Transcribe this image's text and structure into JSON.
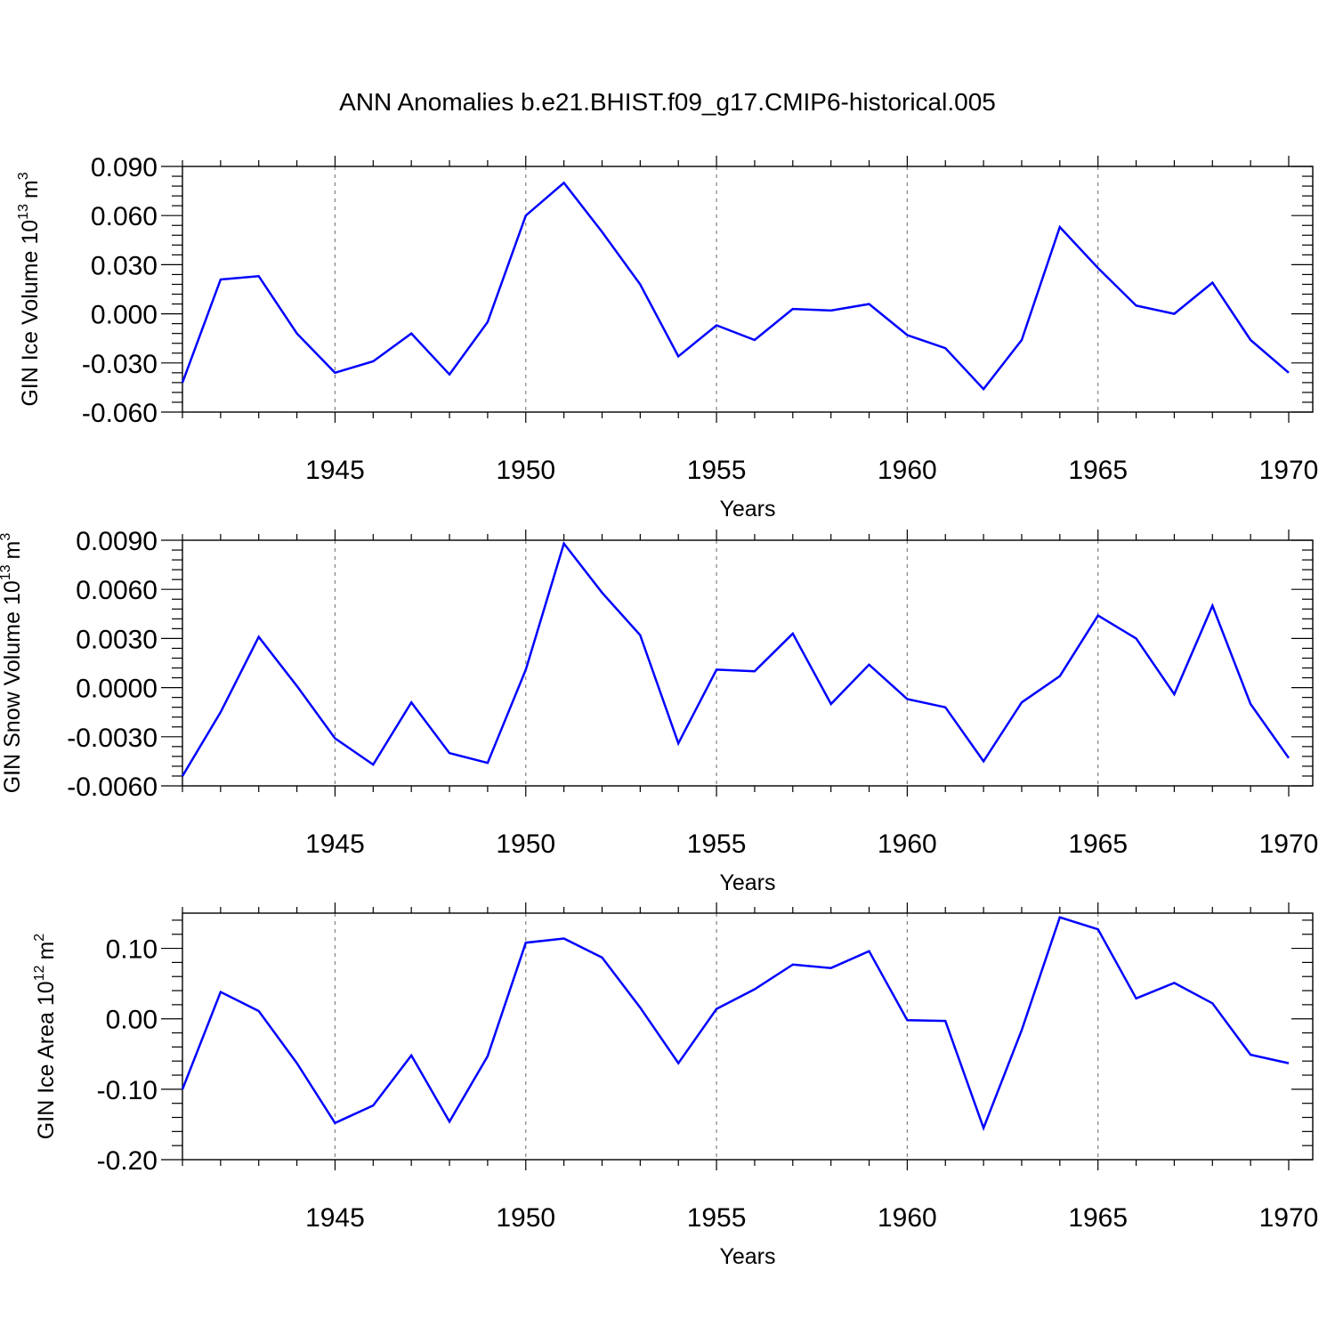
{
  "title": "ANN Anomalies b.e21.BHIST.f09_g17.CMIP6-historical.005",
  "colors": {
    "line": "#0000ff",
    "axis": "#000000",
    "grid": "#808080"
  },
  "chart_data": [
    {
      "type": "line",
      "name": "ice-volume",
      "ylabel_main": "GIN Ice Volume 10",
      "ylabel_exp": "13",
      "ylabel_unit": "m",
      "ylabel_unit_exp": "3",
      "xlabel": "Years",
      "xlim": [
        1941,
        1970
      ],
      "ylim": [
        -0.06,
        0.09
      ],
      "yticks": [
        -0.06,
        -0.03,
        0.0,
        0.03,
        0.06,
        0.09
      ],
      "yticklabels": [
        "-0.060",
        "-0.030",
        "0.000",
        "0.030",
        "0.060",
        "0.090"
      ],
      "xticks": [
        1945,
        1950,
        1955,
        1960,
        1965,
        1970
      ],
      "xticklabels": [
        "1945",
        "1950",
        "1955",
        "1960",
        "1965",
        "1970"
      ],
      "x": [
        1941,
        1942,
        1943,
        1944,
        1945,
        1946,
        1947,
        1948,
        1949,
        1950,
        1951,
        1952,
        1953,
        1954,
        1955,
        1956,
        1957,
        1958,
        1959,
        1960,
        1961,
        1962,
        1963,
        1964,
        1965,
        1966,
        1967,
        1968,
        1969,
        1970
      ],
      "values": [
        -0.042,
        0.021,
        0.023,
        -0.012,
        -0.036,
        -0.029,
        -0.012,
        -0.037,
        -0.005,
        0.06,
        0.08,
        0.05,
        0.018,
        -0.026,
        -0.007,
        -0.016,
        0.003,
        0.002,
        0.006,
        -0.013,
        -0.021,
        -0.046,
        -0.016,
        0.053,
        0.028,
        0.005,
        0.0,
        0.019,
        -0.016,
        -0.036
      ]
    },
    {
      "type": "line",
      "name": "snow-volume",
      "ylabel_main": "GIN Snow Volume 10",
      "ylabel_exp": "13",
      "ylabel_unit": "m",
      "ylabel_unit_exp": "3",
      "xlabel": "Years",
      "xlim": [
        1941,
        1970
      ],
      "ylim": [
        -0.006,
        0.009
      ],
      "yticks": [
        -0.006,
        -0.003,
        0.0,
        0.003,
        0.006,
        0.009
      ],
      "yticklabels": [
        "-0.0060",
        "-0.0030",
        "0.0000",
        "0.0030",
        "0.0060",
        "0.0090"
      ],
      "xticks": [
        1945,
        1950,
        1955,
        1960,
        1965,
        1970
      ],
      "xticklabels": [
        "1945",
        "1950",
        "1955",
        "1960",
        "1965",
        "1970"
      ],
      "x": [
        1941,
        1942,
        1943,
        1944,
        1945,
        1946,
        1947,
        1948,
        1949,
        1950,
        1951,
        1952,
        1953,
        1954,
        1955,
        1956,
        1957,
        1958,
        1959,
        1960,
        1961,
        1962,
        1963,
        1964,
        1965,
        1966,
        1967,
        1968,
        1969,
        1970
      ],
      "values": [
        -0.0054,
        -0.0015,
        0.0031,
        0.0001,
        -0.0031,
        -0.0047,
        -0.0009,
        -0.004,
        -0.0046,
        0.0011,
        0.0088,
        0.0058,
        0.0032,
        -0.0034,
        0.0011,
        0.001,
        0.0033,
        -0.001,
        0.0014,
        -0.0007,
        -0.0012,
        -0.0045,
        -0.0009,
        0.0007,
        0.0044,
        0.003,
        -0.0004,
        0.005,
        -0.001,
        -0.0043
      ]
    },
    {
      "type": "line",
      "name": "ice-area",
      "ylabel_main": "GIN Ice Area 10",
      "ylabel_exp": "12",
      "ylabel_unit": "m",
      "ylabel_unit_exp": "2",
      "xlabel": "Years",
      "xlim": [
        1941,
        1970
      ],
      "ylim": [
        -0.2,
        0.15
      ],
      "yticks": [
        -0.2,
        -0.1,
        0.0,
        0.1
      ],
      "yticklabels": [
        "-0.20",
        "-0.10",
        "0.00",
        "0.10"
      ],
      "xticks": [
        1945,
        1950,
        1955,
        1960,
        1965,
        1970
      ],
      "xticklabels": [
        "1945",
        "1950",
        "1955",
        "1960",
        "1965",
        "1970"
      ],
      "x": [
        1941,
        1942,
        1943,
        1944,
        1945,
        1946,
        1947,
        1948,
        1949,
        1950,
        1951,
        1952,
        1953,
        1954,
        1955,
        1956,
        1957,
        1958,
        1959,
        1960,
        1961,
        1962,
        1963,
        1964,
        1965,
        1966,
        1967,
        1968,
        1969,
        1970
      ],
      "values": [
        -0.1,
        0.038,
        0.011,
        -0.063,
        -0.148,
        -0.123,
        -0.052,
        -0.146,
        -0.053,
        0.108,
        0.114,
        0.087,
        0.016,
        -0.063,
        0.014,
        0.042,
        0.077,
        0.072,
        0.096,
        -0.002,
        -0.003,
        -0.155,
        -0.016,
        0.144,
        0.127,
        0.029,
        0.051,
        0.022,
        -0.051,
        -0.063
      ]
    }
  ]
}
